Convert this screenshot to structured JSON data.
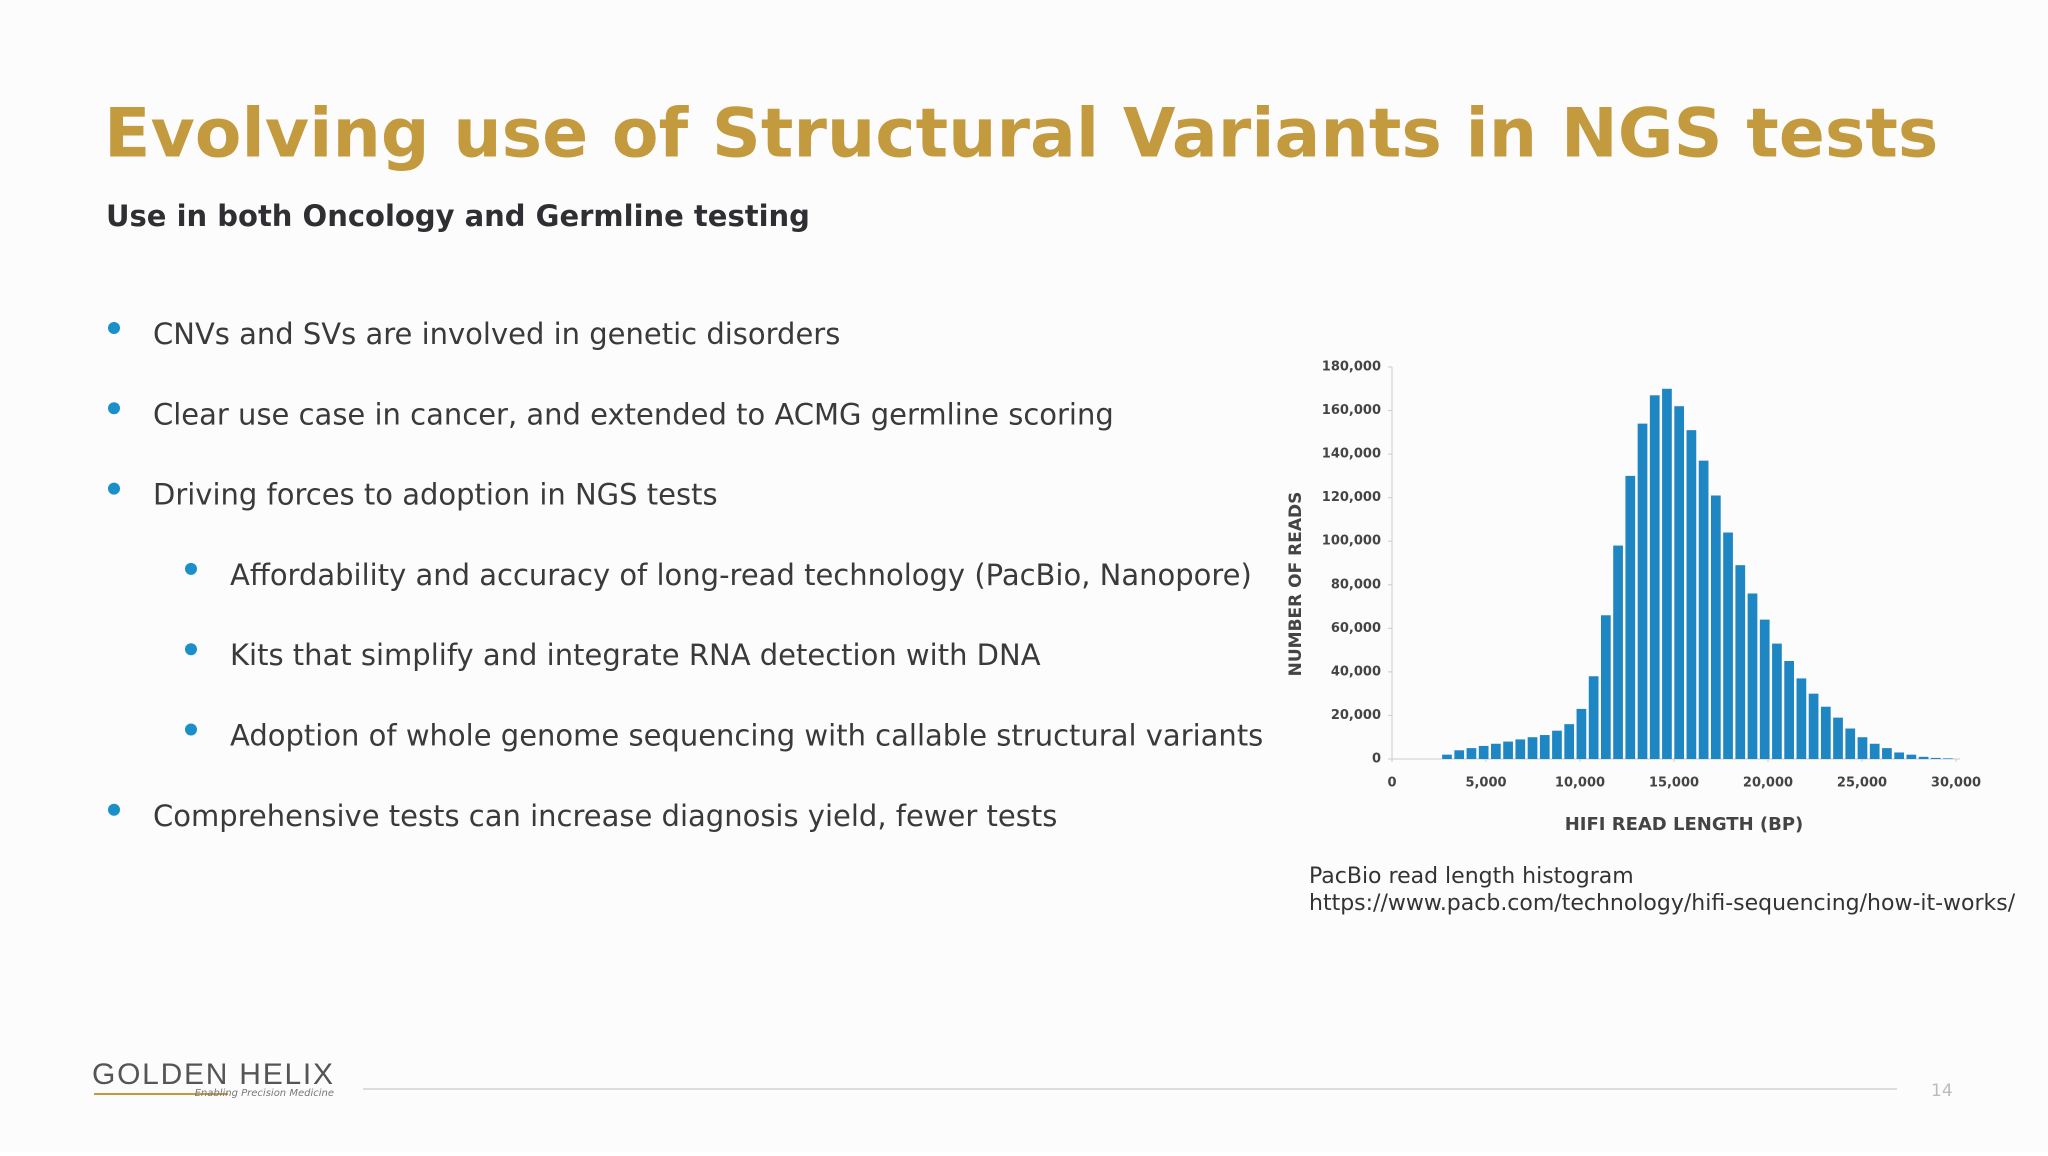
{
  "header": {
    "title": "Evolving use of Structural Variants in NGS tests",
    "subtitle": "Use in both Oncology and Germline testing"
  },
  "bullets": [
    {
      "text": "CNVs and SVs are involved in genetic disorders"
    },
    {
      "text": "Clear use case in cancer, and extended to ACMG germline scoring"
    },
    {
      "text": "Driving forces to adoption in NGS tests",
      "items": [
        "Affordability and accuracy of long-read technology (PacBio, Nanopore)",
        "Kits that simplify and integrate RNA detection with DNA",
        "Adoption of whole genome sequencing with callable structural variants"
      ]
    },
    {
      "text": "Comprehensive tests can increase diagnosis yield, fewer tests"
    }
  ],
  "chart_data": {
    "type": "histogram",
    "xlabel": "HIFI READ LENGTH (BP)",
    "ylabel": "NUMBER OF READS",
    "color": "#1f86c4",
    "bins": [
      2600,
      3250,
      3900,
      4550,
      5200,
      5850,
      6500,
      7150,
      7800,
      8450,
      9100,
      9750,
      10400,
      11050,
      11700,
      12350,
      13000,
      13650,
      14300,
      14950,
      15600,
      16250,
      16900,
      17550,
      18200,
      18850,
      19500,
      20150,
      20800,
      21450,
      22100,
      22750,
      23400,
      24050,
      24700,
      25350,
      26000,
      26650,
      27300,
      27950,
      28600,
      29250,
      29900
    ],
    "values": [
      2000,
      4000,
      5000,
      6000,
      7000,
      8000,
      9000,
      10000,
      11000,
      13000,
      16000,
      23000,
      38000,
      66000,
      98000,
      130000,
      154000,
      167000,
      170000,
      162000,
      151000,
      137000,
      121000,
      104000,
      89000,
      76000,
      64000,
      53000,
      45000,
      37000,
      30000,
      24000,
      19000,
      14000,
      10000,
      7000,
      5000,
      3000,
      2000,
      1000,
      500,
      300
    ],
    "xlim": [
      0,
      30000
    ],
    "ylim": [
      0,
      180000
    ],
    "xticks": [
      0,
      {
        "value": 5000,
        "label": "5,000"
      },
      {
        "value": 10000,
        "label": "10,000"
      },
      {
        "value": 15000,
        "label": "15,000"
      },
      {
        "value": 20000,
        "label": "20,000"
      },
      {
        "value": 25000,
        "label": "25,000"
      },
      {
        "value": 30000,
        "label": "30,000"
      }
    ],
    "yticks": [
      0,
      {
        "value": 20000,
        "label": "20,000"
      },
      {
        "value": 40000,
        "label": "40,000"
      },
      {
        "value": 60000,
        "label": "60,000"
      },
      {
        "value": 80000,
        "label": "80,000"
      },
      {
        "value": 100000,
        "label": "100,000"
      },
      {
        "value": 120000,
        "label": "120,000"
      },
      {
        "value": 140000,
        "label": "140,000"
      },
      {
        "value": 160000,
        "label": "160,000"
      },
      {
        "value": 180000,
        "label": "180,000"
      }
    ]
  },
  "caption": {
    "line1": "PacBio read length histogram",
    "line2": "https://www.pacb.com/technology/hifi-sequencing/how-it-works/"
  },
  "footer": {
    "logo": "GOLDEN HELIX",
    "tagline": "Enabling Precision Medicine",
    "page": "14"
  }
}
